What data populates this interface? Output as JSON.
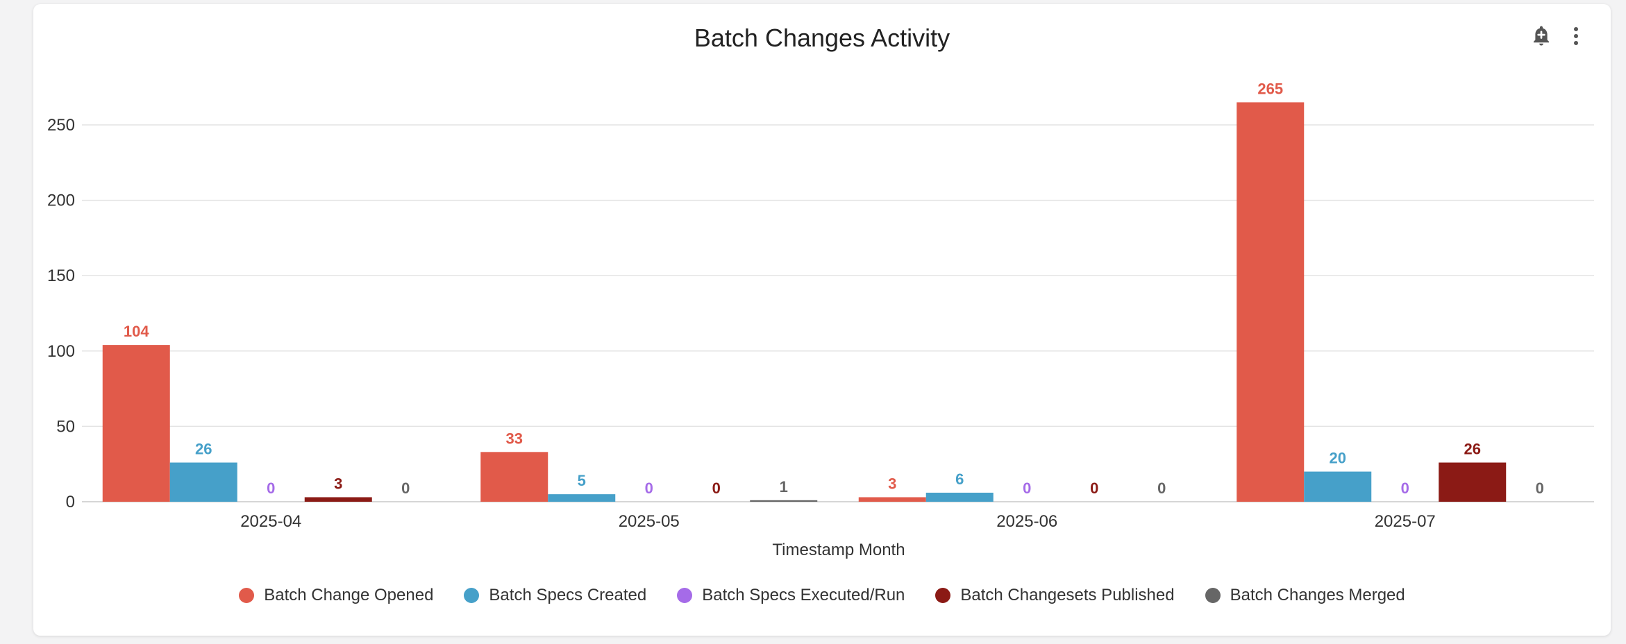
{
  "header": {
    "alert_icon": "bell-plus-icon",
    "menu_icon": "more-vert-icon"
  },
  "chart_data": {
    "type": "bar",
    "title": "Batch Changes Activity",
    "xlabel": "Timestamp Month",
    "ylabel": "",
    "categories": [
      "2025-04",
      "2025-05",
      "2025-06",
      "2025-07"
    ],
    "ylim": [
      0,
      280
    ],
    "yticks": [
      0,
      50,
      100,
      150,
      200,
      250
    ],
    "grid": true,
    "legend_position": "bottom",
    "series": [
      {
        "name": "Batch Change Opened",
        "color": "#e15a4a",
        "values": [
          104,
          33,
          3,
          265
        ]
      },
      {
        "name": "Batch Specs Created",
        "color": "#46a0c9",
        "values": [
          26,
          5,
          6,
          20
        ]
      },
      {
        "name": "Batch Specs Executed/Run",
        "color": "#a56be8",
        "values": [
          0,
          0,
          0,
          0
        ]
      },
      {
        "name": "Batch Changesets Published",
        "color": "#8b1a15",
        "values": [
          3,
          0,
          0,
          26
        ]
      },
      {
        "name": "Batch Changes Merged",
        "color": "#666666",
        "values": [
          0,
          1,
          0,
          0
        ]
      }
    ]
  }
}
